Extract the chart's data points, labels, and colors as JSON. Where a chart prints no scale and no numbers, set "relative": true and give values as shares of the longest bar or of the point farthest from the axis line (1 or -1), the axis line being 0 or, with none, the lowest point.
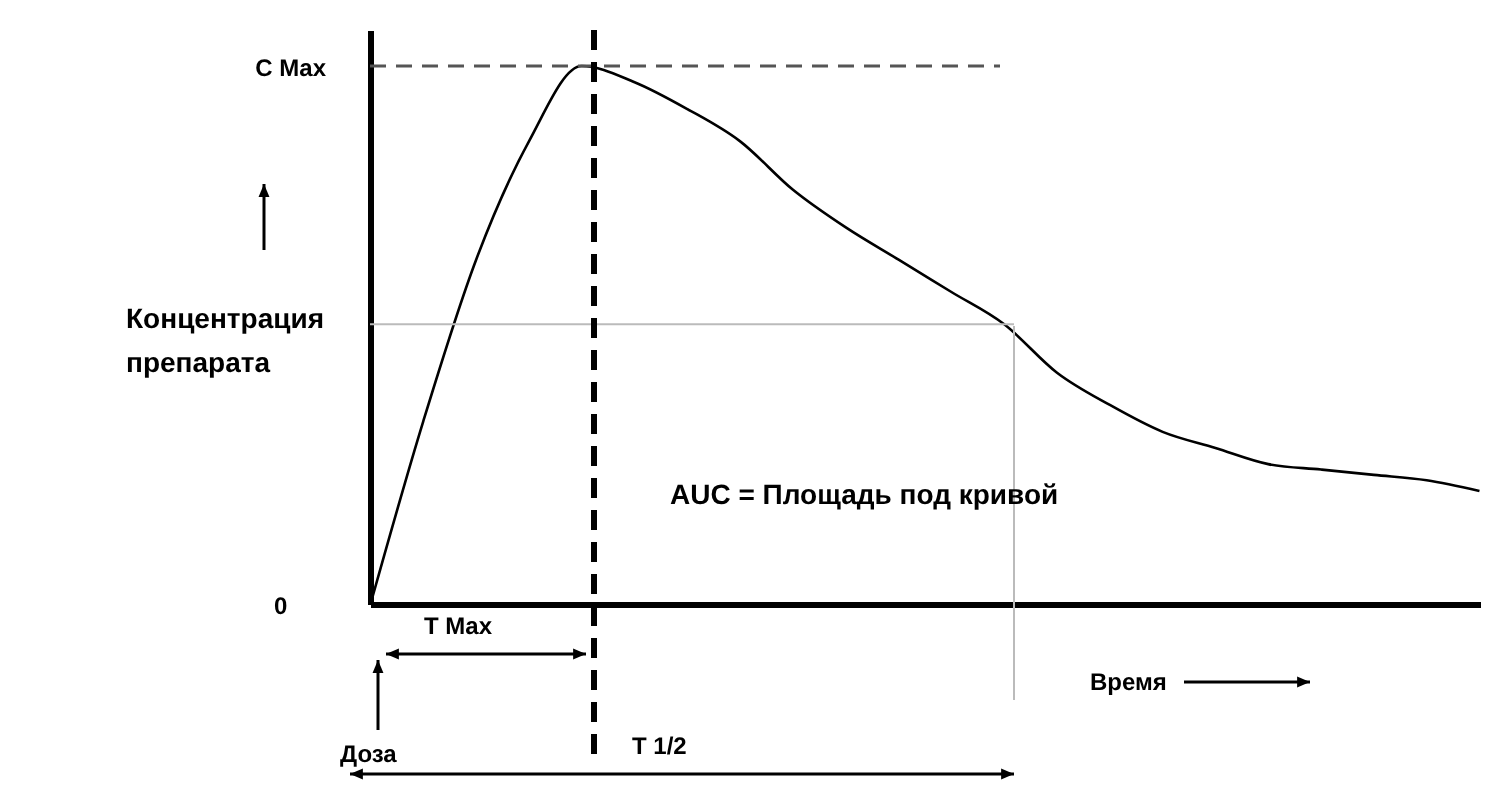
{
  "chart_data": {
    "type": "line",
    "relative": true,
    "xlabel": "Время",
    "ylabel": "Концентрация\nпрепарата",
    "categories": [
      null,
      null,
      null,
      null,
      null,
      null,
      null,
      null,
      null,
      null,
      null,
      null,
      null,
      null,
      null,
      null,
      null,
      null,
      null,
      null,
      null,
      null
    ],
    "series": [
      {
        "color": "#000000",
        "values": [
          0,
          0.34,
          0.64,
          0.86,
          1,
          0.97,
          0.92,
          0.86,
          0.77,
          0.7,
          0.64,
          0.58,
          0.52,
          0.43,
          0.37,
          0.32,
          0.29,
          0.26,
          0.25,
          0.24,
          0.23,
          0.21
        ]
      }
    ],
    "ref_lines": [
      {
        "axis": "y",
        "value": 1,
        "label": "C Max",
        "line_style": "dashed",
        "color": "#555555"
      },
      {
        "axis": "y",
        "value": 0.52,
        "line_style": "solid",
        "color": "#bbbbbb"
      }
    ],
    "annotations": [
      "0",
      "AUC = Площадь под кривой",
      "T Max",
      "Доза",
      "T 1/2"
    ],
    "grid": false,
    "marker": "none",
    "line_style": "solid"
  }
}
